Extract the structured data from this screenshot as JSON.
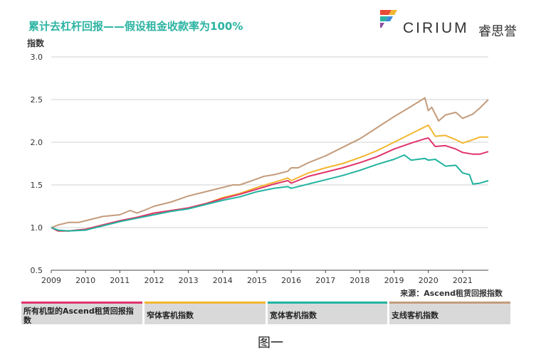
{
  "title": "累计去杠杆回报——假设租金收款率为100%",
  "logo": {
    "brand": "CIRIUM",
    "brand_cn": "睿思誉",
    "colors": [
      "#e94b35",
      "#f2b630",
      "#2bb3a2",
      "#8a4fa3",
      "#3d8bd9"
    ]
  },
  "source": "来源：Ascend租赁回报指数",
  "caption": "图一",
  "legend": [
    {
      "label": "所有机型的Ascend租赁回报指数",
      "color": "#e0346b"
    },
    {
      "label": "窄体客机指数",
      "color": "#f2b630"
    },
    {
      "label": "宽体客机指数",
      "color": "#21b3a0"
    },
    {
      "label": "支线客机指数",
      "color": "#c49c7c"
    }
  ],
  "chart_data": {
    "type": "line",
    "title": "累计去杠杆回报——假设租金收款率为100%",
    "ylabel": "指数",
    "xlabel": "",
    "ylim": [
      0.5,
      3.0
    ],
    "xlim": [
      2009.0,
      2021.75
    ],
    "yticks": [
      "0.5",
      "1.0",
      "1.5",
      "2.0",
      "2.5",
      "3.0"
    ],
    "xticks": [
      2009,
      2010,
      2011,
      2012,
      2013,
      2014,
      2015,
      2016,
      2017,
      2018,
      2019,
      2020,
      2021
    ],
    "grid": "horizontal",
    "series": [
      {
        "name": "支线客机指数",
        "color": "#c49c7c",
        "x": [
          2009.0,
          2009.2,
          2009.5,
          2009.8,
          2010.0,
          2010.5,
          2011.0,
          2011.3,
          2011.5,
          2011.7,
          2012.0,
          2012.5,
          2013.0,
          2013.5,
          2014.0,
          2014.3,
          2014.5,
          2015.0,
          2015.2,
          2015.5,
          2015.9,
          2016.0,
          2016.2,
          2016.5,
          2017.0,
          2017.5,
          2018.0,
          2018.5,
          2019.0,
          2019.5,
          2019.9,
          2020.0,
          2020.1,
          2020.3,
          2020.5,
          2020.8,
          2021.0,
          2021.3,
          2021.5,
          2021.75
        ],
        "values": [
          1.0,
          1.03,
          1.06,
          1.06,
          1.08,
          1.13,
          1.15,
          1.2,
          1.17,
          1.2,
          1.25,
          1.3,
          1.37,
          1.42,
          1.47,
          1.5,
          1.5,
          1.57,
          1.6,
          1.62,
          1.66,
          1.7,
          1.7,
          1.76,
          1.84,
          1.94,
          2.04,
          2.17,
          2.3,
          2.42,
          2.52,
          2.37,
          2.41,
          2.25,
          2.32,
          2.35,
          2.28,
          2.33,
          2.4,
          2.5
        ]
      },
      {
        "name": "窄体客机指数",
        "color": "#f2b630",
        "x": [
          2009.0,
          2009.2,
          2009.5,
          2010.0,
          2010.5,
          2011.0,
          2011.5,
          2012.0,
          2012.5,
          2013.0,
          2013.5,
          2014.0,
          2014.5,
          2015.0,
          2015.5,
          2015.9,
          2016.0,
          2016.5,
          2017.0,
          2017.5,
          2018.0,
          2018.5,
          2019.0,
          2019.5,
          2019.9,
          2020.0,
          2020.2,
          2020.5,
          2020.8,
          2021.0,
          2021.3,
          2021.5,
          2021.75
        ],
        "values": [
          1.0,
          0.96,
          0.96,
          0.98,
          1.03,
          1.08,
          1.12,
          1.17,
          1.2,
          1.23,
          1.28,
          1.35,
          1.4,
          1.47,
          1.53,
          1.58,
          1.55,
          1.64,
          1.7,
          1.75,
          1.82,
          1.9,
          2.0,
          2.1,
          2.18,
          2.2,
          2.07,
          2.08,
          2.03,
          1.99,
          2.03,
          2.06,
          2.06
        ]
      },
      {
        "name": "所有机型的Ascend租赁回报指数",
        "color": "#e0346b",
        "x": [
          2009.0,
          2009.2,
          2009.5,
          2010.0,
          2010.5,
          2011.0,
          2011.5,
          2012.0,
          2012.5,
          2013.0,
          2013.5,
          2014.0,
          2014.5,
          2015.0,
          2015.5,
          2015.9,
          2016.0,
          2016.5,
          2017.0,
          2017.5,
          2018.0,
          2018.5,
          2019.0,
          2019.5,
          2019.9,
          2020.0,
          2020.2,
          2020.5,
          2020.8,
          2021.0,
          2021.3,
          2021.5,
          2021.75
        ],
        "values": [
          1.0,
          0.96,
          0.96,
          0.98,
          1.03,
          1.08,
          1.12,
          1.17,
          1.2,
          1.23,
          1.28,
          1.34,
          1.39,
          1.45,
          1.51,
          1.55,
          1.52,
          1.6,
          1.65,
          1.7,
          1.76,
          1.83,
          1.92,
          1.99,
          2.04,
          2.05,
          1.95,
          1.96,
          1.92,
          1.88,
          1.86,
          1.86,
          1.89
        ]
      },
      {
        "name": "宽体客机指数",
        "color": "#21b3a0",
        "x": [
          2009.0,
          2009.2,
          2009.5,
          2010.0,
          2010.5,
          2011.0,
          2011.5,
          2012.0,
          2012.5,
          2013.0,
          2013.5,
          2014.0,
          2014.5,
          2015.0,
          2015.5,
          2015.9,
          2016.0,
          2016.5,
          2017.0,
          2017.5,
          2018.0,
          2018.5,
          2019.0,
          2019.3,
          2019.5,
          2019.9,
          2020.0,
          2020.2,
          2020.5,
          2020.8,
          2021.0,
          2021.2,
          2021.3,
          2021.5,
          2021.75
        ],
        "values": [
          1.0,
          0.97,
          0.96,
          0.97,
          1.02,
          1.07,
          1.11,
          1.15,
          1.19,
          1.22,
          1.27,
          1.32,
          1.36,
          1.42,
          1.46,
          1.48,
          1.46,
          1.51,
          1.56,
          1.61,
          1.67,
          1.74,
          1.8,
          1.85,
          1.79,
          1.81,
          1.79,
          1.8,
          1.72,
          1.73,
          1.64,
          1.62,
          1.51,
          1.52,
          1.55
        ]
      }
    ]
  }
}
